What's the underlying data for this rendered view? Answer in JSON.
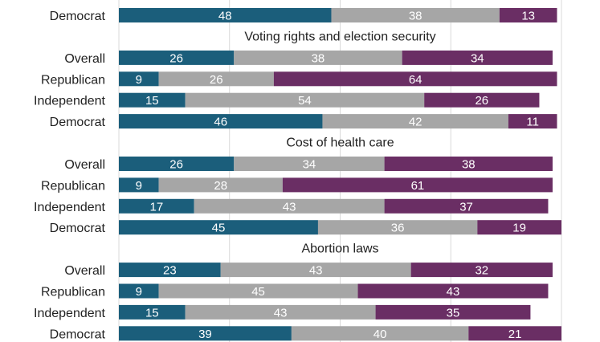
{
  "chart_data": {
    "type": "bar",
    "orientation": "horizontal",
    "stacked": true,
    "grid": true,
    "colors": [
      "#1b5e7b",
      "#a6a6a6",
      "#6a2e64"
    ],
    "label_colors": [
      "#ffffff",
      "#ffffff",
      "#ffffff"
    ],
    "scale_max": 100,
    "panels": [
      {
        "title": "",
        "rows": [
          {
            "label": "Democrat",
            "values": [
              48,
              38,
              13
            ]
          }
        ]
      },
      {
        "title": "Voting rights and election security",
        "rows": [
          {
            "label": "Overall",
            "values": [
              26,
              38,
              34
            ]
          },
          {
            "label": "Republican",
            "values": [
              9,
              26,
              64
            ]
          },
          {
            "label": "Independent",
            "values": [
              15,
              54,
              26
            ]
          },
          {
            "label": "Democrat",
            "values": [
              46,
              42,
              11
            ]
          }
        ]
      },
      {
        "title": "Cost of health care",
        "rows": [
          {
            "label": "Overall",
            "values": [
              26,
              34,
              38
            ]
          },
          {
            "label": "Republican",
            "values": [
              9,
              28,
              61
            ]
          },
          {
            "label": "Independent",
            "values": [
              17,
              43,
              37
            ]
          },
          {
            "label": "Democrat",
            "values": [
              45,
              36,
              19
            ]
          }
        ]
      },
      {
        "title": "Abortion laws",
        "rows": [
          {
            "label": "Overall",
            "values": [
              23,
              43,
              32
            ]
          },
          {
            "label": "Republican",
            "values": [
              9,
              45,
              43
            ]
          },
          {
            "label": "Independent",
            "values": [
              15,
              43,
              35
            ]
          },
          {
            "label": "Democrat",
            "values": [
              39,
              40,
              21
            ]
          }
        ]
      }
    ]
  }
}
